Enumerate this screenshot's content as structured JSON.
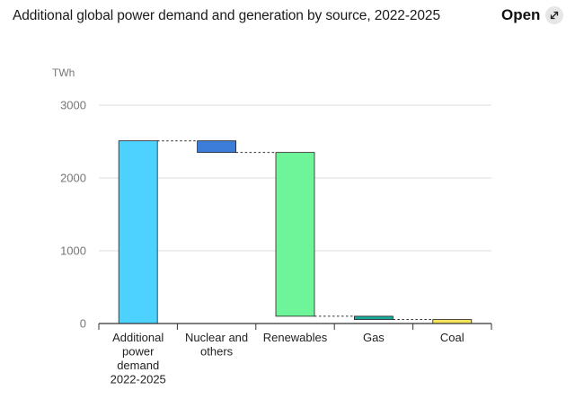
{
  "header": {
    "title": "Additional global power demand and generation by source, 2022-2025",
    "open_label": "Open",
    "open_icon": "expand-arrows-icon"
  },
  "chart_data": {
    "type": "bar",
    "subtype": "waterfall",
    "title": "Additional global power demand and generation by source, 2022-2025",
    "unit_label": "TWh",
    "ylim": [
      0,
      3000
    ],
    "yticks": [
      0,
      1000,
      2000,
      3000
    ],
    "ytick_labels": [
      "0",
      "1000",
      "2000",
      "3000"
    ],
    "grid": true,
    "categories": [
      [
        "Additional",
        "power",
        "demand",
        "2022-2025"
      ],
      [
        "Nuclear and",
        "others"
      ],
      [
        "Renewables"
      ],
      [
        "Gas"
      ],
      [
        "Coal"
      ]
    ],
    "bars": [
      {
        "label": "Additional power demand 2022-2025",
        "bottom": 0,
        "top": 2510,
        "color": "#4dd2ff"
      },
      {
        "label": "Nuclear and others",
        "bottom": 2350,
        "top": 2510,
        "color": "#3b7dd8"
      },
      {
        "label": "Renewables",
        "bottom": 100,
        "top": 2350,
        "color": "#6ef59a"
      },
      {
        "label": "Gas",
        "bottom": 55,
        "top": 100,
        "color": "#1aa99a"
      },
      {
        "label": "Coal",
        "bottom": 0,
        "top": 55,
        "color": "#f5e45a"
      }
    ],
    "connectors": [
      {
        "from": 0,
        "to": 1,
        "value": 2510
      },
      {
        "from": 1,
        "to": 2,
        "value": 2350
      },
      {
        "from": 2,
        "to": 3,
        "value": 100
      },
      {
        "from": 3,
        "to": 4,
        "value": 55
      }
    ],
    "colors": {
      "grid": "#dddddd",
      "axis": "#333333",
      "tick_text": "#777777",
      "category_text": "#222222",
      "bar_stroke": "#222222",
      "connector": "#333333"
    }
  }
}
